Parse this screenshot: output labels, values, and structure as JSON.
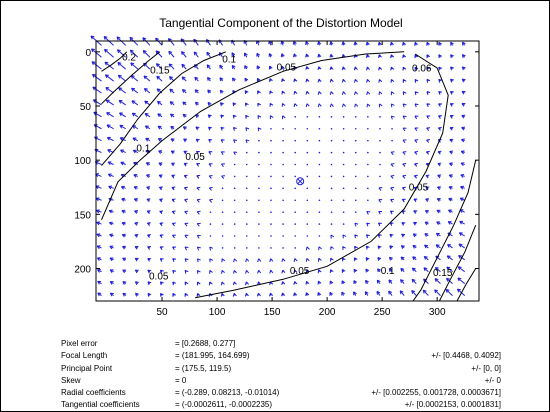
{
  "chart_data": {
    "type": "contour",
    "title": "Tangential Component of the Distortion Model",
    "x_ticks": [
      50,
      100,
      150,
      200,
      250,
      300
    ],
    "y_ticks": [
      0,
      50,
      100,
      150,
      200
    ],
    "xlim": [
      -10,
      338
    ],
    "ylim": [
      230,
      -10
    ],
    "y_axis_reversed": true,
    "principal_point_marker": {
      "x": 175.5,
      "y": 119.5
    },
    "contour_labels": [
      {
        "label": "0.2",
        "x": 20,
        "y": 8
      },
      {
        "label": "0.15",
        "x": 48,
        "y": 20
      },
      {
        "label": "0.1",
        "x": 111,
        "y": 10
      },
      {
        "label": "0.05",
        "x": 163,
        "y": 17
      },
      {
        "label": "0.06",
        "x": 286,
        "y": 18
      },
      {
        "label": "0.1",
        "x": 33,
        "y": 92
      },
      {
        "label": "0.05",
        "x": 80,
        "y": 100
      },
      {
        "label": "0.05",
        "x": 283,
        "y": 128
      },
      {
        "label": "0.05",
        "x": 47,
        "y": 210
      },
      {
        "label": "0.05",
        "x": 175,
        "y": 205
      },
      {
        "label": "0.1",
        "x": 255,
        "y": 205
      },
      {
        "label": "0.15",
        "x": 305,
        "y": 207
      }
    ],
    "grid": false,
    "vector_field": true,
    "colors": {
      "vectors": "#1f1fd6",
      "contours": "#000000",
      "marker": "#1f1fd6"
    }
  },
  "params": [
    {
      "name": "Pixel error",
      "value": "= [0.2688, 0.277]",
      "unc": ""
    },
    {
      "name": "Focal Length",
      "value": "= (181.995, 164.699)",
      "unc": "+/- [0.4468, 0.4092]"
    },
    {
      "name": "Principal Point",
      "value": "= (175.5, 119.5)",
      "unc": "+/- [0, 0]"
    },
    {
      "name": "Skew",
      "value": "= 0",
      "unc": "+/- 0"
    },
    {
      "name": "Radial coefficients",
      "value": "= (-0.289, 0.08213, -0.01014)",
      "unc": "+/- [0.002255, 0.001728, 0.0003671]"
    },
    {
      "name": "Tangential coefficients",
      "value": "= (-0.0002611, -0.0002235)",
      "unc": "+/- [0.0002153, 0.0001831]"
    }
  ]
}
